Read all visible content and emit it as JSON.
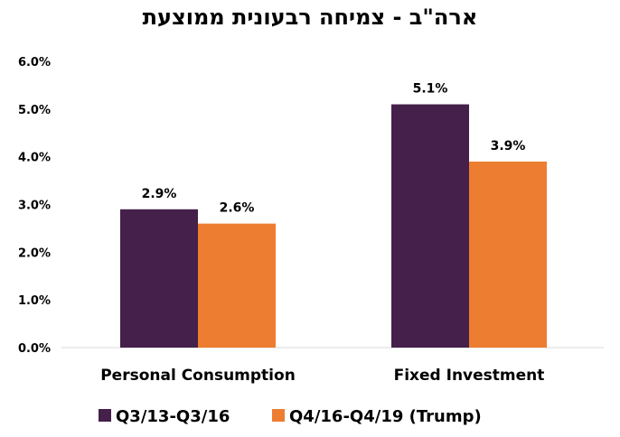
{
  "chart_data": {
    "type": "bar",
    "title": "ארה\"ב - צמיחה רבעונית ממוצעת",
    "categories": [
      "Personal Consumption",
      "Fixed Investment"
    ],
    "series": [
      {
        "name": "Q3/13-Q3/16",
        "values": [
          2.9,
          5.1
        ],
        "labels": [
          "2.9%",
          "5.1%"
        ],
        "color": "#45204A"
      },
      {
        "name": "Q4/16-Q4/19 (Trump)",
        "values": [
          2.6,
          3.9
        ],
        "labels": [
          "2.6%",
          "3.9%"
        ],
        "color": "#ED7D31"
      }
    ],
    "ylim": [
      0,
      6
    ],
    "yticks": [
      "0.0%",
      "1.0%",
      "2.0%",
      "3.0%",
      "4.0%",
      "5.0%",
      "6.0%"
    ],
    "grid": false,
    "legend_position": "bottom"
  }
}
